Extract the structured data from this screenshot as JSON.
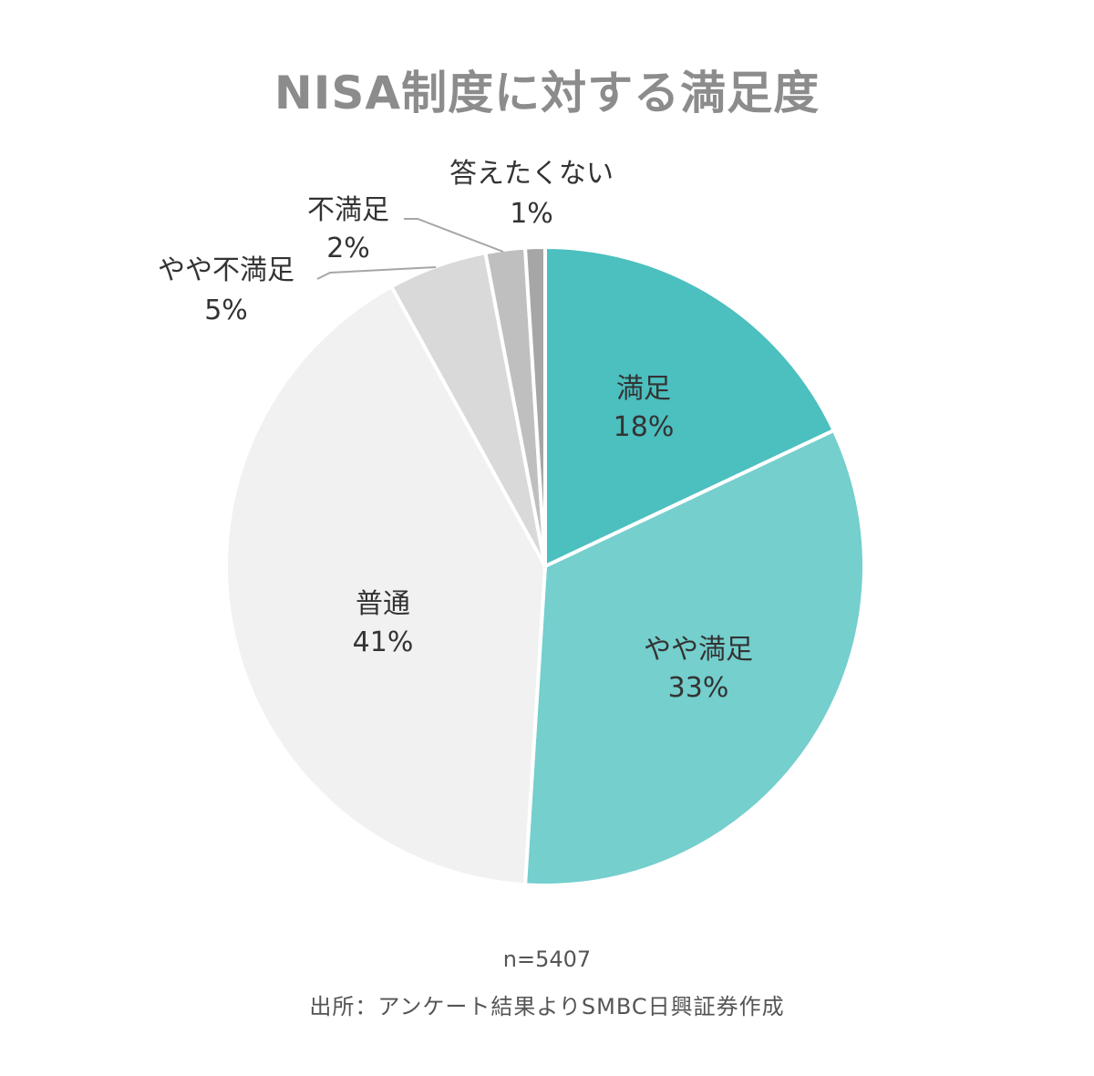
{
  "chart_data": {
    "type": "pie",
    "title": "NISA制度に対する満足度",
    "slices": [
      {
        "label": "満足",
        "value_label": "18%",
        "value": 18,
        "color": "#4cbfbf"
      },
      {
        "label": "やや満足",
        "value_label": "33%",
        "value": 33,
        "color": "#74cfcd"
      },
      {
        "label": "普通",
        "value_label": "41%",
        "value": 41,
        "color": "#f1f1f1"
      },
      {
        "label": "やや不満足",
        "value_label": "5%",
        "value": 5,
        "color": "#d9d9d9"
      },
      {
        "label": "不満足",
        "value_label": "2%",
        "value": 2,
        "color": "#bfbfbf"
      },
      {
        "label": "答えたくない",
        "value_label": "1%",
        "value": 1,
        "color": "#a6a6a6"
      }
    ],
    "start_angle_deg": 0,
    "direction": "clockwise"
  },
  "footer": {
    "sample_size": "n=5407",
    "source": "出所：アンケート結果よりSMBC日興証券作成"
  }
}
